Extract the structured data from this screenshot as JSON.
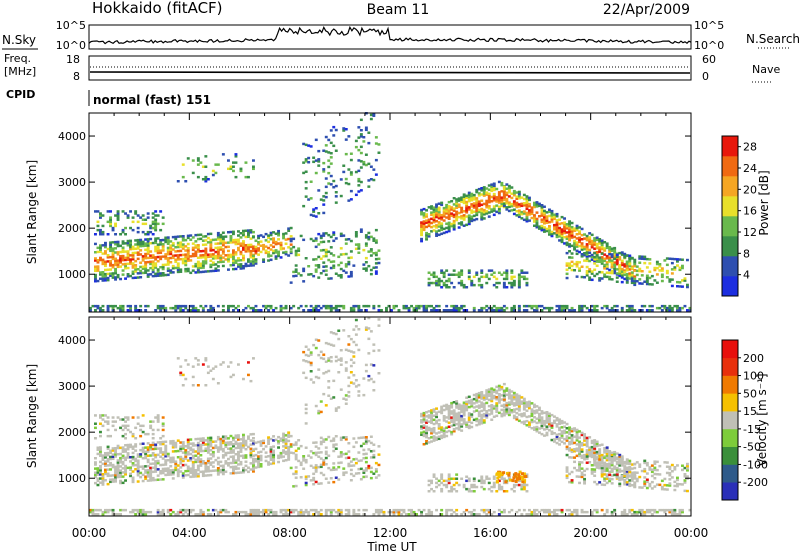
{
  "header": {
    "title": "Hokkaido (fitACF)",
    "beam": "Beam 11",
    "date": "22/Apr/2009"
  },
  "noise_panel": {
    "left_label": "N.Sky",
    "right_label": "N.Search",
    "left_ticks": [
      "10^5",
      "10^0"
    ],
    "right_ticks": [
      "10^5",
      "10^0"
    ]
  },
  "freq_panel": {
    "left_label_line1": "Freq.",
    "left_label_line2": "[MHz]",
    "right_label": "Nave",
    "left_ticks": [
      "18",
      "8"
    ],
    "right_ticks": [
      "60",
      "0"
    ]
  },
  "cpid": {
    "label": "CPID",
    "mode": "normal (fast) 151"
  },
  "chart_data": [
    {
      "type": "heatmap",
      "quantity": "power",
      "ylabel": "Slant Range [km]",
      "yticks": [
        "4000",
        "3000",
        "2000",
        "1000"
      ],
      "ylim": [
        180,
        4500
      ],
      "colorbar_label": "Power [dB]",
      "colorbar_ticks": [
        "28",
        "24",
        "20",
        "16",
        "12",
        "8",
        "4"
      ],
      "colorbar_range": [
        0,
        30
      ],
      "colors": [
        "#1c2ee0",
        "#2e4fb0",
        "#3a8f4a",
        "#69b94c",
        "#e8e02a",
        "#f5a623",
        "#f06a12",
        "#e8180c"
      ]
    },
    {
      "type": "heatmap",
      "quantity": "velocity",
      "ylabel": "Slant Range [km]",
      "yticks": [
        "4000",
        "3000",
        "2000",
        "1000"
      ],
      "ylim": [
        180,
        4500
      ],
      "colorbar_label": "Velocity [m s⁻¹]",
      "colorbar_ticks": [
        "200",
        "100",
        "50",
        "15",
        "-15",
        "-50",
        "-100",
        "-200"
      ],
      "colorbar_range": [
        -250,
        250
      ],
      "colors": [
        "#2a2fb8",
        "#2e5a8a",
        "#3a8f3a",
        "#7dcc3a",
        "#c0c0b6",
        "#f5c000",
        "#f07a00",
        "#e8300c",
        "#e8100c"
      ]
    }
  ],
  "xaxis": {
    "label": "Time UT",
    "ticks": [
      "00:00",
      "04:00",
      "08:00",
      "12:00",
      "16:00",
      "20:00",
      "00:00"
    ],
    "range_hours": [
      0,
      24
    ]
  }
}
